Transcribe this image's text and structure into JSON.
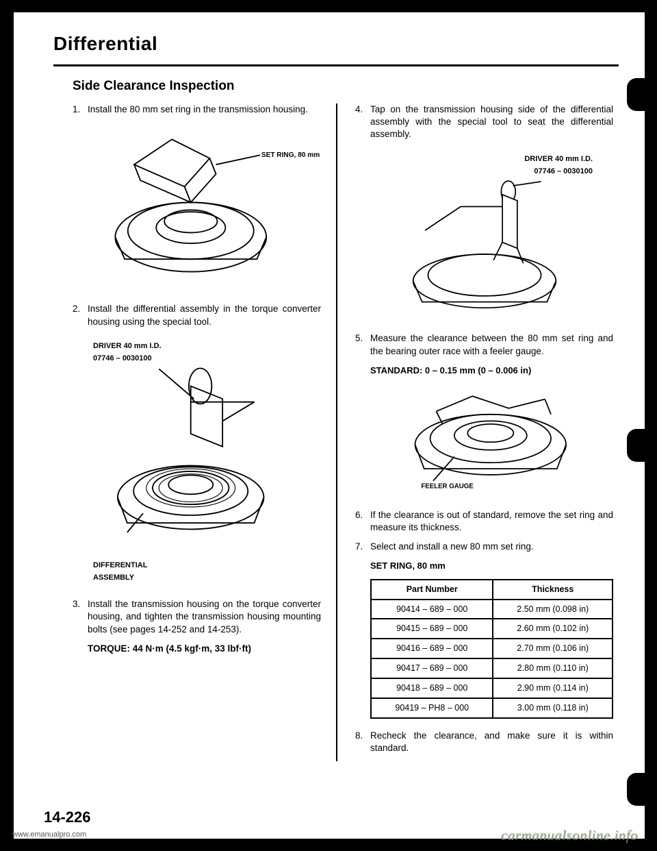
{
  "doc_title": "Differential",
  "section_title": "Side Clearance Inspection",
  "left_steps": [
    {
      "num": "1.",
      "text": "Install the 80 mm set ring in the transmission housing."
    },
    {
      "num": "2.",
      "text": "Install the differential assembly in the torque converter housing using the special tool."
    },
    {
      "num": "3.",
      "text": "Install the transmission housing on the torque converter housing, and tighten the transmission housing mounting bolts (see pages 14-252 and 14-253)."
    }
  ],
  "torque_label": "TORQUE: 44 N·m (4.5 kgf·m, 33 lbf·ft)",
  "fig1_label": "SET RING, 80 mm",
  "fig2_label_top": "DRIVER 40 mm I.D.",
  "fig2_label_pn": "07746 – 0030100",
  "fig2_label_bottom": "DIFFERENTIAL\nASSEMBLY",
  "right_steps_a": [
    {
      "num": "4.",
      "text": "Tap on the transmission housing side of the differential assembly with the special tool to seat the differential assembly."
    }
  ],
  "fig3_label_top": "DRIVER 40 mm I.D.",
  "fig3_label_pn": "07746 – 0030100",
  "right_steps_b": [
    {
      "num": "5.",
      "text": "Measure the clearance between the 80 mm set ring and the bearing outer race with a feeler gauge."
    }
  ],
  "standard_label": "STANDARD: 0 – 0.15 mm (0 – 0.006 in)",
  "fig4_label": "FEELER GAUGE",
  "right_steps_c": [
    {
      "num": "6.",
      "text": "If the clearance is out of standard, remove the set ring and measure its thickness."
    },
    {
      "num": "7.",
      "text": "Select and install a new 80 mm set ring."
    }
  ],
  "table_title": "SET RING, 80 mm",
  "table": {
    "columns": [
      "Part Number",
      "Thickness"
    ],
    "rows": [
      [
        "90414 – 689 – 000",
        "2.50 mm (0.098 in)"
      ],
      [
        "90415 – 689 – 000",
        "2.60 mm (0.102 in)"
      ],
      [
        "90416 – 689 – 000",
        "2.70 mm (0.106 in)"
      ],
      [
        "90417 – 689 – 000",
        "2.80 mm (0.110 in)"
      ],
      [
        "90418 – 689 – 000",
        "2.90 mm (0.114 in)"
      ],
      [
        "90419 – PH8 – 000",
        "3.00 mm (0.118 in)"
      ]
    ]
  },
  "right_steps_d": [
    {
      "num": "8.",
      "text": "Recheck the clearance, and make sure it is within standard."
    }
  ],
  "page_number": "14-226",
  "watermark_left": "www.emanualpro.com",
  "watermark_right": "carmanualsonline.info"
}
